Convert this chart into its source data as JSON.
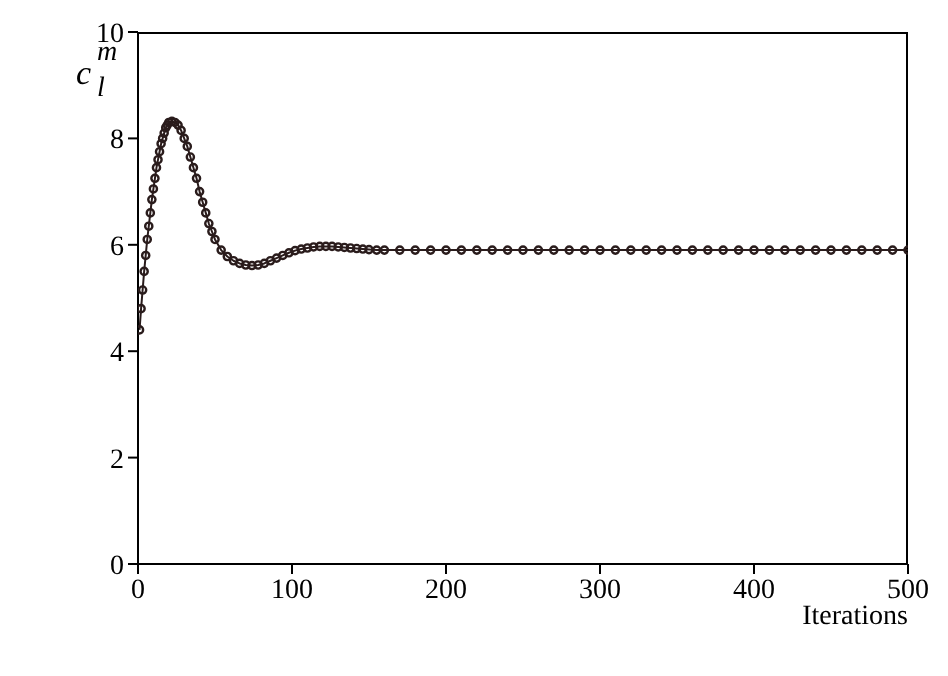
{
  "chart_data": {
    "type": "line",
    "xlabel": "Iterations",
    "ylabel": "c$_{l}$$^{m}$",
    "marker": "circle",
    "grid": false,
    "legend": false,
    "xlim": [
      0,
      500
    ],
    "xticks": [
      0,
      100,
      200,
      300,
      400,
      500
    ],
    "ylim": [
      0,
      10
    ],
    "yticks": [
      0,
      2,
      4,
      6,
      8,
      10
    ],
    "series": [
      {
        "color": "#2a1c1c",
        "x": [
          1,
          2,
          3,
          4,
          5,
          6,
          7,
          8,
          9,
          10,
          11,
          12,
          13,
          14,
          15,
          16,
          17,
          18,
          19,
          20,
          22,
          24,
          26,
          28,
          30,
          32,
          34,
          36,
          38,
          40,
          42,
          44,
          46,
          48,
          50,
          54,
          58,
          62,
          66,
          70,
          74,
          78,
          82,
          86,
          90,
          94,
          98,
          102,
          106,
          110,
          114,
          118,
          122,
          126,
          130,
          134,
          138,
          142,
          146,
          150,
          155,
          160,
          170,
          180,
          190,
          200,
          210,
          220,
          230,
          240,
          250,
          260,
          270,
          280,
          290,
          300,
          310,
          320,
          330,
          340,
          350,
          360,
          370,
          380,
          390,
          400,
          410,
          420,
          430,
          440,
          450,
          460,
          470,
          480,
          490,
          500
        ],
        "values": [
          4.4,
          4.8,
          5.15,
          5.5,
          5.8,
          6.1,
          6.35,
          6.6,
          6.85,
          7.05,
          7.25,
          7.45,
          7.6,
          7.75,
          7.9,
          8.0,
          8.1,
          8.2,
          8.25,
          8.3,
          8.32,
          8.3,
          8.25,
          8.15,
          8.0,
          7.85,
          7.65,
          7.45,
          7.25,
          7.0,
          6.8,
          6.6,
          6.4,
          6.25,
          6.1,
          5.9,
          5.78,
          5.7,
          5.65,
          5.62,
          5.61,
          5.62,
          5.65,
          5.7,
          5.75,
          5.8,
          5.85,
          5.89,
          5.92,
          5.94,
          5.96,
          5.97,
          5.97,
          5.97,
          5.96,
          5.95,
          5.94,
          5.93,
          5.92,
          5.91,
          5.9,
          5.9,
          5.9,
          5.9,
          5.9,
          5.9,
          5.9,
          5.9,
          5.9,
          5.9,
          5.9,
          5.9,
          5.9,
          5.9,
          5.9,
          5.9,
          5.9,
          5.9,
          5.9,
          5.9,
          5.9,
          5.9,
          5.9,
          5.9,
          5.9,
          5.9,
          5.9,
          5.9,
          5.9,
          5.9,
          5.9,
          5.9,
          5.9,
          5.9,
          5.9,
          5.9
        ]
      }
    ]
  }
}
